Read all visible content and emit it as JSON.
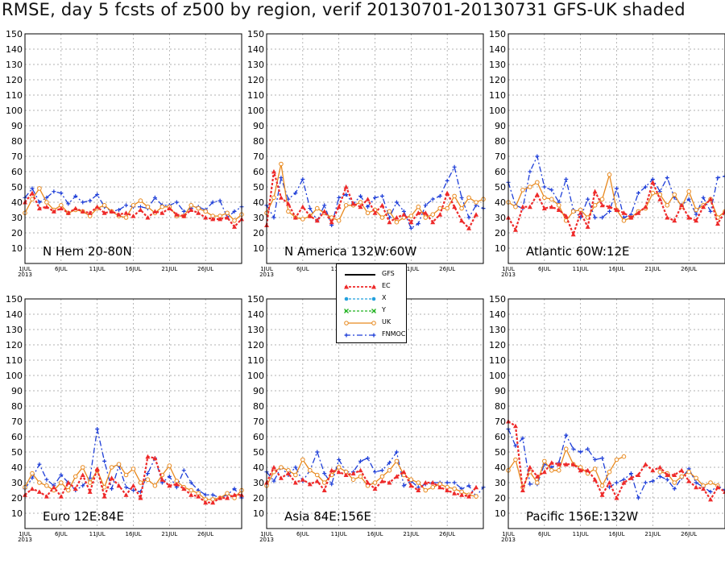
{
  "title": "RMSE, day 5 fcsts of z500 by region, verif 20130701-20130731 GFS-UK shaded",
  "legend": {
    "entries": [
      {
        "name": "GFS",
        "color": "#000000",
        "style": "solid",
        "marker": "none"
      },
      {
        "name": "EC",
        "color": "#ee2a2a",
        "style": "dotted",
        "marker": "triangle"
      },
      {
        "name": "X",
        "color": "#22a0dd",
        "style": "dotted",
        "marker": "circle"
      },
      {
        "name": "Y",
        "color": "#22b222",
        "style": "dotted",
        "marker": "x"
      },
      {
        "name": "UK",
        "color": "#e8891e",
        "style": "solid",
        "marker": "circle-open"
      },
      {
        "name": "FNMOC",
        "color": "#1f3fd8",
        "style": "dashdot",
        "marker": "plus"
      }
    ]
  },
  "chart_data": [
    {
      "type": "line",
      "region_label": "N Hem 20-80N",
      "ylim": [
        0,
        150
      ],
      "yticks": [
        10,
        20,
        30,
        40,
        50,
        60,
        70,
        80,
        90,
        100,
        110,
        120,
        130,
        140,
        150
      ],
      "xticks": [
        "1JUL\n2013",
        "6JUL",
        "11JUL",
        "16JUL",
        "21JUL",
        "26JUL"
      ],
      "grid": true,
      "x": [
        1,
        2,
        3,
        4,
        5,
        6,
        7,
        8,
        9,
        10,
        11,
        12,
        13,
        14,
        15,
        16,
        17,
        18,
        19,
        20,
        21,
        22,
        23,
        24,
        25,
        26,
        27,
        28,
        29,
        30,
        31
      ],
      "series": [
        {
          "name": "EC",
          "values": [
            40,
            46,
            36,
            37,
            34,
            36,
            33,
            36,
            34,
            33,
            37,
            33,
            34,
            32,
            33,
            31,
            35,
            30,
            34,
            33,
            36,
            32,
            31,
            35,
            33,
            30,
            29,
            29,
            30,
            24,
            29
          ]
        },
        {
          "name": "UK",
          "values": [
            33,
            42,
            49,
            40,
            35,
            38,
            33,
            35,
            34,
            31,
            36,
            38,
            34,
            31,
            30,
            38,
            41,
            37,
            33,
            37,
            37,
            31,
            31,
            38,
            36,
            34,
            31,
            31,
            33,
            28,
            32
          ]
        },
        {
          "name": "FNMOC",
          "values": [
            43,
            49,
            40,
            43,
            47,
            46,
            39,
            44,
            40,
            41,
            45,
            37,
            34,
            35,
            38,
            37,
            37,
            36,
            43,
            38,
            38,
            40,
            34,
            36,
            37,
            35,
            40,
            41,
            30,
            34,
            37
          ]
        }
      ]
    },
    {
      "type": "line",
      "region_label": "N America 132W:60W",
      "ylim": [
        0,
        150
      ],
      "yticks": [
        10,
        20,
        30,
        40,
        50,
        60,
        70,
        80,
        90,
        100,
        110,
        120,
        130,
        140,
        150
      ],
      "xticks": [
        "1JUL\n2013",
        "6JUL",
        "11JUL",
        "16JUL",
        "21JUL",
        "26JUL"
      ],
      "grid": true,
      "x": [
        1,
        2,
        3,
        4,
        5,
        6,
        7,
        8,
        9,
        10,
        11,
        12,
        13,
        14,
        15,
        16,
        17,
        18,
        19,
        20,
        21,
        22,
        23,
        24,
        25,
        26,
        27,
        28,
        29,
        30,
        31
      ],
      "series": [
        {
          "name": "EC",
          "values": [
            25,
            60,
            43,
            39,
            30,
            37,
            31,
            28,
            34,
            27,
            37,
            50,
            39,
            37,
            42,
            33,
            38,
            27,
            30,
            32,
            27,
            33,
            33,
            27,
            32,
            46,
            37,
            28,
            23,
            32,
            null
          ]
        },
        {
          "name": "UK",
          "values": [
            33,
            43,
            65,
            34,
            30,
            29,
            31,
            36,
            33,
            30,
            28,
            38,
            38,
            40,
            33,
            35,
            30,
            34,
            27,
            30,
            31,
            37,
            30,
            32,
            36,
            36,
            44,
            36,
            43,
            40,
            42
          ]
        },
        {
          "name": "FNMOC",
          "values": [
            38,
            30,
            56,
            42,
            46,
            55,
            36,
            28,
            38,
            25,
            43,
            45,
            39,
            44,
            37,
            43,
            44,
            30,
            40,
            34,
            23,
            26,
            38,
            42,
            44,
            54,
            63,
            43,
            30,
            38,
            36
          ]
        }
      ]
    },
    {
      "type": "line",
      "region_label": "Atlantic 60W:12E",
      "ylim": [
        0,
        150
      ],
      "yticks": [
        10,
        20,
        30,
        40,
        50,
        60,
        70,
        80,
        90,
        100,
        110,
        120,
        130,
        140,
        150
      ],
      "xticks": [
        "1JUL\n2013",
        "6JUL",
        "11JUL",
        "16JUL",
        "21JUL",
        "26JUL"
      ],
      "grid": true,
      "x": [
        1,
        2,
        3,
        4,
        5,
        6,
        7,
        8,
        9,
        10,
        11,
        12,
        13,
        14,
        15,
        16,
        17,
        18,
        19,
        20,
        21,
        22,
        23,
        24,
        25,
        26,
        27,
        28,
        29,
        30,
        31
      ],
      "series": [
        {
          "name": "EC",
          "values": [
            30,
            22,
            37,
            37,
            45,
            36,
            37,
            35,
            31,
            19,
            33,
            24,
            47,
            38,
            37,
            35,
            33,
            30,
            33,
            37,
            53,
            42,
            30,
            28,
            38,
            30,
            28,
            37,
            42,
            26,
            34
          ]
        },
        {
          "name": "UK",
          "values": [
            40,
            37,
            48,
            50,
            53,
            43,
            42,
            38,
            28,
            34,
            35,
            30,
            38,
            42,
            58,
            35,
            28,
            30,
            34,
            36,
            46,
            45,
            38,
            45,
            37,
            47,
            35,
            38,
            42,
            30,
            34
          ]
        },
        {
          "name": "FNMOC",
          "values": [
            53,
            38,
            36,
            60,
            70,
            50,
            48,
            40,
            55,
            35,
            30,
            42,
            30,
            30,
            34,
            49,
            30,
            32,
            46,
            50,
            55,
            47,
            56,
            43,
            38,
            42,
            32,
            43,
            34,
            56,
            57
          ]
        }
      ]
    },
    {
      "type": "line",
      "region_label": "Euro 12E:84E",
      "ylim": [
        0,
        150
      ],
      "yticks": [
        10,
        20,
        30,
        40,
        50,
        60,
        70,
        80,
        90,
        100,
        110,
        120,
        130,
        140,
        150
      ],
      "xticks": [
        "1JUL\n2013",
        "6JUL",
        "11JUL",
        "16JUL",
        "21JUL",
        "26JUL"
      ],
      "grid": true,
      "x": [
        1,
        2,
        3,
        4,
        5,
        6,
        7,
        8,
        9,
        10,
        11,
        12,
        13,
        14,
        15,
        16,
        17,
        18,
        19,
        20,
        21,
        22,
        23,
        24,
        25,
        26,
        27,
        28,
        29,
        30,
        31
      ],
      "series": [
        {
          "name": "EC",
          "values": [
            22,
            26,
            24,
            21,
            27,
            21,
            30,
            26,
            35,
            24,
            39,
            21,
            33,
            28,
            22,
            28,
            20,
            47,
            46,
            32,
            28,
            29,
            26,
            22,
            21,
            17,
            17,
            20,
            20,
            22,
            22
          ]
        },
        {
          "name": "UK",
          "values": [
            27,
            36,
            30,
            28,
            25,
            30,
            25,
            34,
            40,
            30,
            38,
            27,
            40,
            42,
            35,
            39,
            30,
            32,
            28,
            35,
            41,
            31,
            27,
            25,
            23,
            19,
            19,
            20,
            23,
            20,
            25
          ]
        },
        {
          "name": "FNMOC",
          "values": [
            26,
            33,
            42,
            32,
            28,
            35,
            30,
            25,
            28,
            33,
            65,
            44,
            26,
            41,
            27,
            25,
            24,
            36,
            46,
            30,
            34,
            27,
            38,
            30,
            25,
            22,
            22,
            20,
            22,
            26,
            20
          ]
        }
      ]
    },
    {
      "type": "line",
      "region_label": "Asia 84E:156E",
      "ylim": [
        0,
        150
      ],
      "yticks": [
        10,
        20,
        30,
        40,
        50,
        60,
        70,
        80,
        90,
        100,
        110,
        120,
        130,
        140,
        150
      ],
      "xticks": [
        "1JUL\n2013",
        "6JUL",
        "11JUL",
        "16JUL",
        "21JUL",
        "26JUL"
      ],
      "grid": true,
      "x": [
        1,
        2,
        3,
        4,
        5,
        6,
        7,
        8,
        9,
        10,
        11,
        12,
        13,
        14,
        15,
        16,
        17,
        18,
        19,
        20,
        21,
        22,
        23,
        24,
        25,
        26,
        27,
        28,
        29,
        30,
        31
      ],
      "series": [
        {
          "name": "EC",
          "values": [
            30,
            40,
            33,
            36,
            30,
            32,
            29,
            31,
            25,
            38,
            37,
            35,
            36,
            38,
            30,
            26,
            31,
            30,
            34,
            37,
            28,
            25,
            30,
            30,
            27,
            25,
            23,
            22,
            21,
            27,
            null
          ]
        },
        {
          "name": "UK",
          "values": [
            28,
            37,
            40,
            38,
            35,
            45,
            38,
            35,
            30,
            35,
            40,
            37,
            32,
            34,
            28,
            30,
            34,
            38,
            44,
            35,
            32,
            30,
            25,
            27,
            29,
            27,
            26,
            24,
            22,
            21,
            null
          ]
        },
        {
          "name": "FNMOC",
          "values": [
            37,
            31,
            40,
            35,
            40,
            31,
            38,
            50,
            36,
            29,
            45,
            37,
            37,
            44,
            46,
            37,
            38,
            43,
            50,
            28,
            31,
            27,
            29,
            30,
            30,
            30,
            30,
            26,
            28,
            21,
            27
          ]
        }
      ]
    },
    {
      "type": "line",
      "region_label": "Pacific 156E:132W",
      "ylim": [
        0,
        150
      ],
      "yticks": [
        10,
        20,
        30,
        40,
        50,
        60,
        70,
        80,
        90,
        100,
        110,
        120,
        130,
        140,
        150
      ],
      "xticks": [
        "1JUL\n2013",
        "6JUL",
        "11JUL",
        "16JUL",
        "21JUL",
        "26JUL"
      ],
      "grid": true,
      "x": [
        1,
        2,
        3,
        4,
        5,
        6,
        7,
        8,
        9,
        10,
        11,
        12,
        13,
        14,
        15,
        16,
        17,
        18,
        19,
        20,
        21,
        22,
        23,
        24,
        25,
        26,
        27,
        28,
        29,
        30,
        31
      ],
      "series": [
        {
          "name": "EC",
          "values": [
            70,
            67,
            25,
            40,
            34,
            37,
            43,
            42,
            42,
            42,
            38,
            38,
            32,
            22,
            30,
            20,
            30,
            33,
            35,
            42,
            38,
            40,
            35,
            35,
            38,
            31,
            27,
            26,
            19,
            27,
            24
          ]
        },
        {
          "name": "UK",
          "values": [
            38,
            45,
            27,
            37,
            30,
            44,
            38,
            38,
            52,
            42,
            40,
            36,
            39,
            28,
            37,
            45,
            47,
            null,
            null,
            null,
            null,
            37,
            36,
            30,
            34,
            37,
            33,
            28,
            30,
            28,
            null
          ]
        },
        {
          "name": "FNMOC",
          "values": [
            65,
            54,
            59,
            29,
            29,
            42,
            40,
            43,
            61,
            52,
            50,
            52,
            45,
            46,
            27,
            30,
            32,
            36,
            20,
            30,
            31,
            34,
            32,
            26,
            33,
            39,
            30,
            27,
            24,
            28,
            25
          ]
        }
      ]
    }
  ]
}
